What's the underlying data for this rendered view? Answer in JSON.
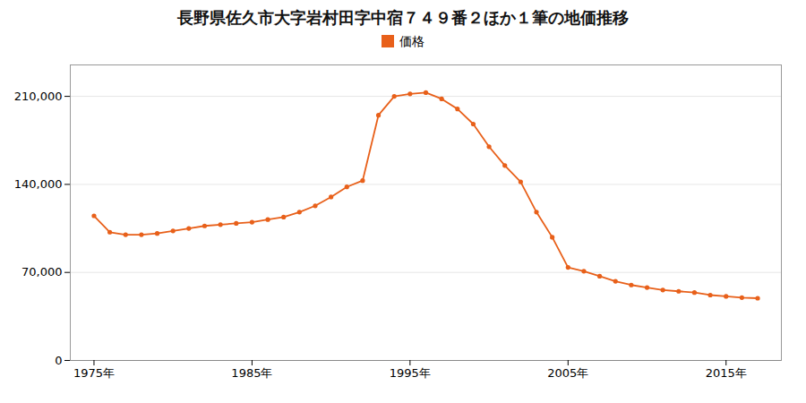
{
  "chart_data": {
    "type": "line",
    "title": "長野県佐久市大字岩村田字中宿７４９番２ほか１筆の地価推移",
    "x": [
      1975,
      1976,
      1977,
      1978,
      1979,
      1980,
      1981,
      1982,
      1983,
      1984,
      1985,
      1986,
      1987,
      1988,
      1989,
      1990,
      1991,
      1992,
      1993,
      1994,
      1995,
      1996,
      1997,
      1998,
      1999,
      2000,
      2001,
      2002,
      2003,
      2004,
      2005,
      2006,
      2007,
      2008,
      2009,
      2010,
      2011,
      2012,
      2013,
      2014,
      2015,
      2016,
      2017
    ],
    "series": [
      {
        "name": "価格",
        "color": "#e8601a",
        "marker": "circle",
        "line_style": "solid",
        "values": [
          115000,
          102000,
          100000,
          100000,
          101000,
          103000,
          105000,
          107000,
          108000,
          109000,
          110000,
          112000,
          114000,
          118000,
          123000,
          130000,
          138000,
          143000,
          195000,
          210000,
          212000,
          213000,
          208000,
          200000,
          188000,
          170000,
          155000,
          142000,
          118000,
          98000,
          74000,
          71000,
          67000,
          63000,
          60000,
          58000,
          56000,
          55000,
          54000,
          52000,
          51000,
          50000,
          49500
        ]
      }
    ],
    "xlim": [
      1973.5,
      2018.5
    ],
    "xticks": [
      {
        "value": 1975,
        "label": "1975年"
      },
      {
        "value": 1985,
        "label": "1985年"
      },
      {
        "value": 1995,
        "label": "1995年"
      },
      {
        "value": 2005,
        "label": "2005年"
      },
      {
        "value": 2015,
        "label": "2015年"
      }
    ],
    "ylim": [
      0,
      235000
    ],
    "yticks": [
      0,
      {
        "value": 70000,
        "label": "70,000"
      },
      {
        "value": 140000,
        "label": "140,000"
      },
      {
        "value": 210000,
        "label": "210,000"
      }
    ],
    "grid": true,
    "legend": "top"
  }
}
